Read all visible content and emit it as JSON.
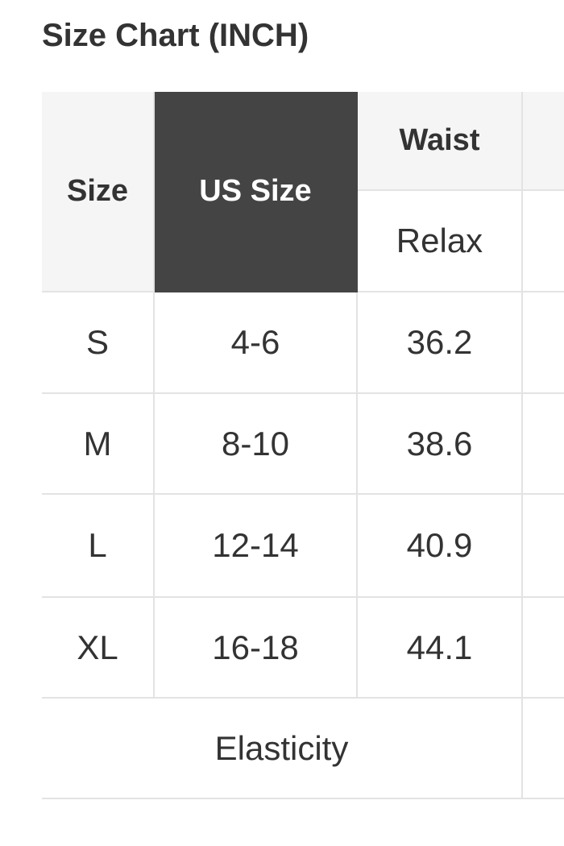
{
  "title": "Size Chart (INCH)",
  "table": {
    "headers": {
      "size": "Size",
      "us_size": "US Size",
      "waist": "Waist",
      "waist_sub": "Relax"
    },
    "rows": [
      {
        "size": "S",
        "us_size": "4-6",
        "waist": "36.2"
      },
      {
        "size": "M",
        "us_size": "8-10",
        "waist": "38.6"
      },
      {
        "size": "L",
        "us_size": "12-14",
        "waist": "40.9"
      },
      {
        "size": "XL",
        "us_size": "16-18",
        "waist": "44.1"
      }
    ],
    "footer": {
      "label": "Elasticity"
    }
  },
  "colors": {
    "header_bg": "#f5f5f5",
    "highlight_header_bg": "#444444",
    "border": "#e3e3e3"
  }
}
